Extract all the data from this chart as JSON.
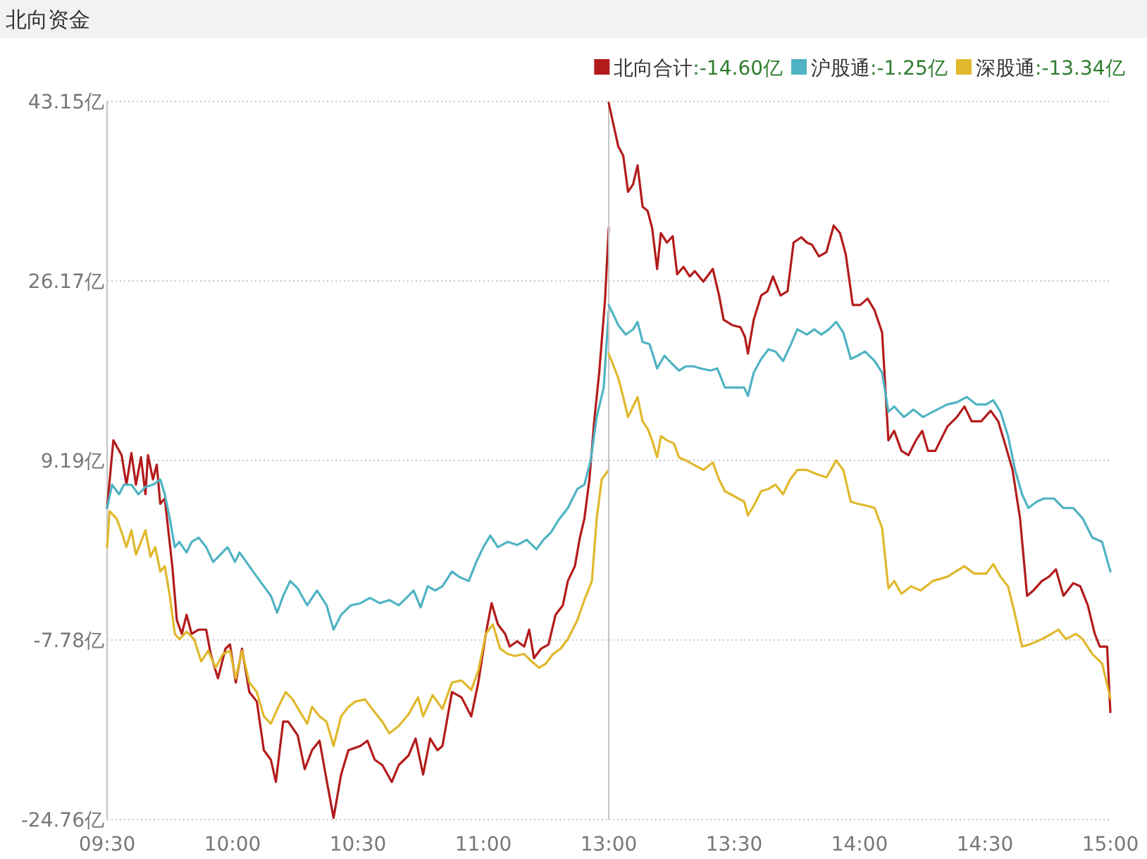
{
  "chart_data": [
    {
      "type": "line",
      "title": "北向资金",
      "grid": "y",
      "line_style": "solid",
      "marker": "none",
      "xlim": [
        9.5,
        11.5
      ],
      "ylim": [
        -24.76,
        43.15
      ],
      "xticks": [
        {
          "value": 9.5,
          "label": "09:30"
        },
        {
          "value": 10,
          "label": "10:00"
        },
        {
          "value": 10.5,
          "label": "10:30"
        },
        {
          "value": 11,
          "label": "11:00"
        }
      ],
      "yticks": [
        {
          "value": 43.15,
          "label": "43.15亿"
        },
        {
          "value": 26.17,
          "label": "26.17亿"
        },
        {
          "value": 9.19,
          "label": "9.19亿"
        },
        {
          "value": -7.78,
          "label": "-7.78亿"
        },
        {
          "value": -24.76,
          "label": "-24.76亿"
        }
      ],
      "series": [
        {
          "color": "#b31b1b",
          "x": [
            9.5,
            9.525,
            9.558,
            9.577,
            9.597,
            9.615,
            9.635,
            9.653,
            9.663,
            9.683,
            9.698,
            9.712,
            9.73,
            9.76,
            9.778,
            9.798,
            9.817,
            9.837,
            9.865,
            9.895,
            9.913,
            9.942,
            9.972,
            9.99,
            10.013,
            10.038,
            10.067,
            10.097,
            10.125,
            10.153,
            10.173,
            10.202,
            10.222,
            10.26,
            10.288,
            10.317,
            10.347,
            10.375,
            10.403,
            10.433,
            10.462,
            10.51,
            10.538,
            10.567,
            10.597,
            10.635,
            10.663,
            10.702,
            10.73,
            10.76,
            10.788,
            10.817,
            10.837,
            10.875,
            10.913,
            10.952,
            10.98,
            11.01,
            11.033,
            11.058,
            11.087,
            11.105,
            11.135,
            11.163,
            11.183,
            11.202,
            11.23,
            11.26,
            11.288,
            11.317,
            11.337,
            11.365,
            11.385,
            11.403,
            11.423,
            11.442,
            11.462,
            11.485,
            11.5
          ],
          "values": [
            4.7,
            11.1,
            9.7,
            6.9,
            9.9,
            6.9,
            9.5,
            6.0,
            9.7,
            7.4,
            8.8,
            5.1,
            5.6,
            -0.8,
            -5.9,
            -7.2,
            -5.4,
            -7.2,
            -6.8,
            -6.8,
            -9.1,
            -11.4,
            -8.6,
            -8.2,
            -11.8,
            -8.6,
            -12.7,
            -13.6,
            -18.2,
            -19.1,
            -21.2,
            -15.5,
            -15.5,
            -16.8,
            -20.0,
            -18.2,
            -17.3,
            -21.0,
            -24.6,
            -20.5,
            -18.2,
            -17.8,
            -17.3,
            -19.1,
            -19.6,
            -21.2,
            -19.6,
            -18.7,
            -17.1,
            -20.5,
            -17.1,
            -18.2,
            -17.8,
            -12.7,
            -13.2,
            -15.0,
            -11.8,
            -7.2,
            -4.3,
            -6.3,
            -7.2,
            -8.4,
            -7.9,
            -8.4,
            -6.8,
            -9.5,
            -8.6,
            -8.2,
            -5.4,
            -4.5,
            -2.2,
            -0.8,
            1.9,
            3.7,
            7.4,
            12.9,
            17.5,
            24.3,
            31.2
          ]
        },
        {
          "color": "#4fb3c3",
          "x": [
            9.5,
            9.52,
            9.548,
            9.567,
            9.597,
            9.625,
            9.653,
            9.683,
            9.712,
            9.73,
            9.75,
            9.77,
            9.788,
            9.817,
            9.837,
            9.865,
            9.895,
            9.923,
            9.952,
            9.98,
            10.01,
            10.028,
            10.067,
            10.097,
            10.125,
            10.153,
            10.178,
            10.202,
            10.23,
            10.26,
            10.298,
            10.337,
            10.375,
            10.403,
            10.433,
            10.472,
            10.51,
            10.548,
            10.587,
            10.625,
            10.663,
            10.702,
            10.722,
            10.75,
            10.778,
            10.808,
            10.837,
            10.875,
            10.903,
            10.942,
            10.972,
            11.0,
            11.028,
            11.058,
            11.097,
            11.135,
            11.173,
            11.212,
            11.24,
            11.27,
            11.298,
            11.337,
            11.375,
            11.403,
            11.428,
            11.452,
            11.48,
            11.5
          ],
          "values": [
            4.7,
            6.9,
            6.0,
            6.9,
            6.9,
            6.0,
            6.7,
            6.9,
            7.4,
            6.0,
            3.7,
            1.0,
            1.5,
            0.5,
            1.5,
            1.9,
            1.0,
            -0.4,
            0.3,
            1.0,
            -0.4,
            0.5,
            -0.8,
            -1.8,
            -2.7,
            -3.6,
            -5.2,
            -3.6,
            -2.2,
            -2.9,
            -4.5,
            -3.1,
            -4.5,
            -6.8,
            -5.4,
            -4.5,
            -4.3,
            -3.8,
            -4.3,
            -4.0,
            -4.5,
            -3.6,
            -3.1,
            -4.7,
            -2.7,
            -3.1,
            -2.7,
            -1.3,
            -1.8,
            -2.2,
            -0.4,
            1.0,
            2.1,
            1.0,
            1.5,
            1.2,
            1.7,
            0.8,
            1.7,
            2.4,
            3.5,
            4.7,
            6.5,
            6.9,
            9.2,
            13.3,
            16.1,
            23.4
          ]
        },
        {
          "color": "#e0b82c",
          "x": [
            9.5,
            9.51,
            9.538,
            9.558,
            9.577,
            9.597,
            9.615,
            9.635,
            9.653,
            9.673,
            9.692,
            9.712,
            9.73,
            9.75,
            9.77,
            9.788,
            9.817,
            9.847,
            9.875,
            9.903,
            9.933,
            9.962,
            9.99,
            10.013,
            10.038,
            10.067,
            10.097,
            10.125,
            10.153,
            10.183,
            10.212,
            10.24,
            10.27,
            10.298,
            10.317,
            10.347,
            10.375,
            10.403,
            10.433,
            10.462,
            10.49,
            10.528,
            10.567,
            10.597,
            10.625,
            10.663,
            10.702,
            10.74,
            10.76,
            10.798,
            10.837,
            10.875,
            10.913,
            10.952,
            10.98,
            11.01,
            11.038,
            11.067,
            11.097,
            11.125,
            11.163,
            11.192,
            11.222,
            11.25,
            11.278,
            11.308,
            11.337,
            11.375,
            11.403,
            11.433,
            11.452,
            11.472,
            11.5
          ],
          "values": [
            1.0,
            4.4,
            3.7,
            2.4,
            1.0,
            2.6,
            0.3,
            1.5,
            2.6,
            0.1,
            1.0,
            -1.3,
            -0.8,
            -3.6,
            -7.2,
            -7.7,
            -7.0,
            -7.7,
            -9.8,
            -8.8,
            -10.4,
            -9.1,
            -8.8,
            -11.4,
            -8.8,
            -11.8,
            -12.7,
            -15.0,
            -15.7,
            -14.1,
            -12.7,
            -13.4,
            -14.6,
            -15.7,
            -14.1,
            -15.0,
            -15.5,
            -17.8,
            -15.0,
            -14.1,
            -13.6,
            -13.4,
            -14.6,
            -15.5,
            -16.6,
            -15.9,
            -14.8,
            -13.2,
            -15.0,
            -13.0,
            -14.3,
            -11.8,
            -11.6,
            -12.5,
            -10.7,
            -7.2,
            -6.3,
            -8.6,
            -9.1,
            -9.3,
            -9.1,
            -9.8,
            -10.4,
            -10.0,
            -9.1,
            -8.6,
            -7.7,
            -5.9,
            -4.0,
            -2.2,
            3.7,
            7.4,
            8.3
          ]
        }
      ]
    },
    {
      "type": "line",
      "legend": "top",
      "grid": "y",
      "line_style": "solid",
      "marker": "none",
      "tick_labels": "x",
      "xlim": [
        13,
        15
      ],
      "ylim": [
        -24.76,
        43.15
      ],
      "xticks": [
        {
          "value": 13,
          "label": "13:00"
        },
        {
          "value": 13.5,
          "label": "13:30"
        },
        {
          "value": 14,
          "label": "14:00"
        },
        {
          "value": 14.5,
          "label": "14:30"
        },
        {
          "value": 15,
          "label": "15:00"
        }
      ],
      "yticks": [
        -24.76,
        -7.78,
        9.19,
        26.17,
        43.15
      ],
      "annotations": [
        ":-14.60亿",
        ":-1.25亿",
        ":-13.34亿"
      ],
      "series": [
        {
          "name": "北向合计",
          "color": "#b31b1b",
          "x": [
            13.0,
            13.038,
            13.058,
            13.077,
            13.097,
            13.115,
            13.135,
            13.155,
            13.173,
            13.193,
            13.208,
            13.232,
            13.255,
            13.273,
            13.298,
            13.323,
            13.343,
            13.377,
            13.415,
            13.44,
            13.458,
            13.492,
            13.525,
            13.543,
            13.555,
            13.578,
            13.608,
            13.633,
            13.655,
            13.685,
            13.713,
            13.737,
            13.768,
            13.79,
            13.81,
            13.838,
            13.868,
            13.897,
            13.922,
            13.945,
            13.973,
            14.003,
            14.032,
            14.06,
            14.09,
            14.115,
            14.138,
            14.167,
            14.195,
            14.225,
            14.25,
            14.273,
            14.302,
            14.35,
            14.388,
            14.418,
            14.447,
            14.485,
            14.523,
            14.553,
            14.582,
            14.61,
            14.64,
            14.668,
            14.693,
            14.727,
            14.755,
            14.783,
            14.813,
            14.852,
            14.88,
            14.91,
            14.938,
            14.958,
            14.987,
            15
          ],
          "values": [
            43.0,
            38.9,
            38.0,
            34.6,
            35.3,
            37.1,
            33.2,
            32.8,
            31.2,
            27.3,
            30.7,
            29.8,
            30.4,
            26.8,
            27.5,
            26.6,
            27.1,
            26.1,
            27.3,
            24.8,
            22.5,
            22.0,
            21.8,
            20.9,
            19.3,
            22.5,
            24.8,
            25.2,
            26.6,
            24.8,
            25.2,
            29.8,
            30.3,
            29.8,
            29.6,
            28.5,
            28.9,
            31.4,
            30.7,
            28.7,
            23.9,
            23.9,
            24.5,
            23.4,
            21.3,
            11.1,
            12.0,
            10.1,
            9.7,
            11.1,
            12.0,
            10.1,
            10.1,
            12.4,
            13.3,
            14.3,
            12.9,
            12.9,
            13.9,
            12.9,
            10.6,
            8.3,
            3.7,
            -3.6,
            -3.1,
            -2.2,
            -1.8,
            -1.1,
            -3.6,
            -2.4,
            -2.7,
            -4.5,
            -7.2,
            -8.4,
            -8.4,
            -14.6
          ]
        },
        {
          "name": "沪股通",
          "color": "#4fb3c3",
          "x": [
            13.0,
            13.038,
            13.068,
            13.097,
            13.115,
            13.135,
            13.163,
            13.193,
            13.222,
            13.25,
            13.28,
            13.308,
            13.338,
            13.367,
            13.405,
            13.433,
            13.463,
            13.502,
            13.54,
            13.555,
            13.578,
            13.608,
            13.637,
            13.665,
            13.695,
            13.723,
            13.752,
            13.79,
            13.82,
            13.848,
            13.878,
            13.907,
            13.935,
            13.965,
            13.993,
            14.022,
            14.06,
            14.09,
            14.115,
            14.138,
            14.177,
            14.215,
            14.253,
            14.292,
            14.35,
            14.388,
            14.427,
            14.465,
            14.505,
            14.533,
            14.562,
            14.592,
            14.62,
            14.648,
            14.673,
            14.707,
            14.735,
            14.775,
            14.813,
            14.852,
            14.89,
            14.928,
            14.967,
            15
          ],
          "values": [
            23.9,
            22.0,
            21.1,
            21.6,
            22.3,
            20.4,
            20.2,
            17.9,
            19.1,
            18.4,
            17.7,
            18.1,
            18.1,
            17.9,
            17.7,
            17.9,
            16.1,
            16.1,
            16.1,
            15.3,
            17.5,
            18.8,
            19.7,
            19.5,
            18.6,
            20.0,
            21.6,
            21.1,
            21.6,
            21.1,
            21.6,
            22.3,
            21.3,
            18.8,
            19.1,
            19.5,
            18.6,
            17.5,
            13.8,
            14.3,
            13.3,
            14.0,
            13.3,
            13.8,
            14.5,
            14.7,
            15.2,
            14.5,
            14.5,
            14.9,
            13.8,
            11.5,
            8.3,
            6.0,
            4.7,
            5.3,
            5.6,
            5.6,
            4.7,
            4.7,
            3.7,
            1.9,
            1.5,
            -1.3
          ]
        },
        {
          "name": "深股通",
          "color": "#e0b82c",
          "x": [
            13.0,
            13.038,
            13.058,
            13.077,
            13.097,
            13.115,
            13.135,
            13.155,
            13.173,
            13.193,
            13.208,
            13.232,
            13.26,
            13.28,
            13.308,
            13.338,
            13.377,
            13.415,
            13.44,
            13.463,
            13.502,
            13.54,
            13.555,
            13.578,
            13.608,
            13.637,
            13.665,
            13.695,
            13.723,
            13.752,
            13.79,
            13.83,
            13.868,
            13.907,
            13.935,
            13.965,
            13.993,
            14.032,
            14.06,
            14.09,
            14.115,
            14.138,
            14.167,
            14.205,
            14.243,
            14.292,
            14.35,
            14.418,
            14.457,
            14.505,
            14.533,
            14.562,
            14.592,
            14.62,
            14.648,
            14.678,
            14.727,
            14.765,
            14.793,
            14.823,
            14.862,
            14.89,
            14.928,
            14.967,
            15
          ],
          "values": [
            19.3,
            17.0,
            15.2,
            13.3,
            14.3,
            15.2,
            12.9,
            12.2,
            11.1,
            9.5,
            11.5,
            11.1,
            10.8,
            9.5,
            9.2,
            8.8,
            8.3,
            9.0,
            7.4,
            6.3,
            5.8,
            5.3,
            4.0,
            4.9,
            6.3,
            6.5,
            6.9,
            6.0,
            7.4,
            8.3,
            8.3,
            7.9,
            7.6,
            9.2,
            8.3,
            5.3,
            5.1,
            4.9,
            4.7,
            2.8,
            -2.9,
            -2.2,
            -3.4,
            -2.7,
            -3.1,
            -2.2,
            -1.8,
            -0.8,
            -1.5,
            -1.5,
            -0.6,
            -1.8,
            -2.7,
            -5.4,
            -8.4,
            -8.2,
            -7.7,
            -7.2,
            -6.8,
            -7.7,
            -7.2,
            -7.7,
            -9.1,
            -10.0,
            -13.3
          ]
        }
      ]
    }
  ]
}
